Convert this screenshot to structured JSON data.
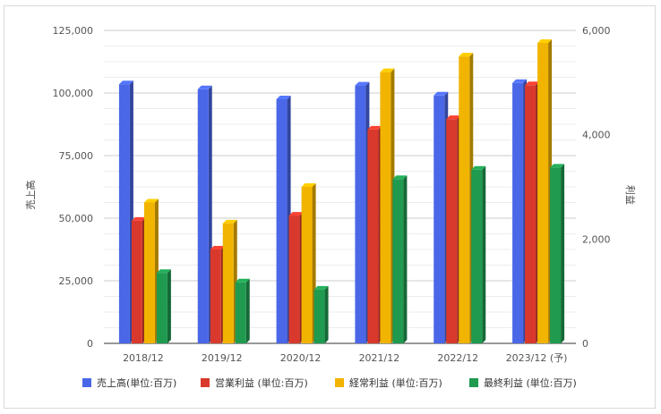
{
  "chart_data": {
    "type": "bar",
    "categories": [
      "2018/12",
      "2019/12",
      "2020/12",
      "2021/12",
      "2022/12",
      "2023/12 (予)"
    ],
    "left_axis": {
      "label": "売上高",
      "ylim": [
        0,
        125000
      ],
      "ticks": [
        "0",
        "25,000",
        "50,000",
        "75,000",
        "100,000",
        "125,000"
      ]
    },
    "right_axis": {
      "label": "利益",
      "ylim": [
        0,
        6000
      ],
      "ticks": [
        "0",
        "2,000",
        "4,000",
        "6,000"
      ]
    },
    "series": [
      {
        "name": "売上高(単位:百万)",
        "axis": "left",
        "color": "#4a67e8",
        "values": [
          103500,
          101500,
          97500,
          103000,
          99000,
          104000
        ]
      },
      {
        "name": "営業利益 (単位:百万)",
        "axis": "right",
        "color": "#d9392c",
        "values": [
          2350,
          1800,
          2450,
          4100,
          4300,
          4950
        ]
      },
      {
        "name": "経常利益 (単位:百万)",
        "axis": "right",
        "color": "#f1b400",
        "values": [
          2700,
          2300,
          3000,
          5200,
          5500,
          5760
        ]
      },
      {
        "name": "最終利益 (単位:百万)",
        "axis": "right",
        "color": "#1f9a4f",
        "values": [
          1350,
          1170,
          1030,
          3150,
          3330,
          3370
        ]
      }
    ],
    "grid": true,
    "legend": "bottom"
  }
}
